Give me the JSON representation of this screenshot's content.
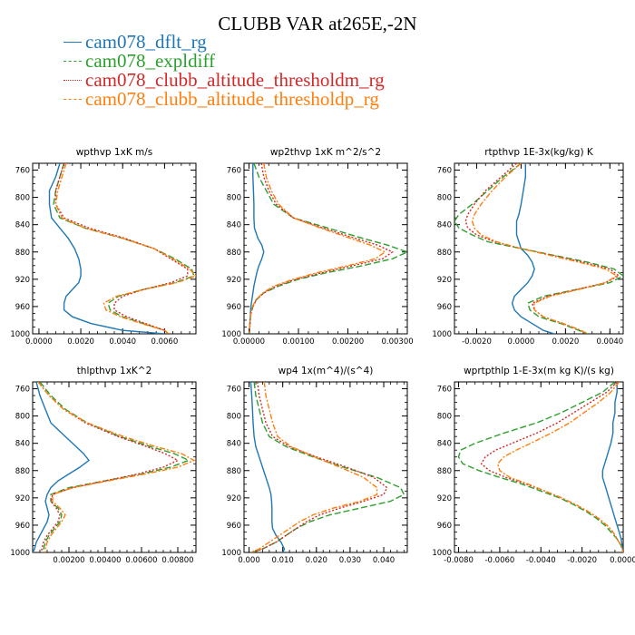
{
  "title": "CLUBB VAR at265E,-2N",
  "legend": [
    {
      "name": "cam078_dflt_rg",
      "color": "#1f77b4",
      "dash": "solid"
    },
    {
      "name": "cam078_expldiff",
      "color": "#2ca02c",
      "dash": "longdash"
    },
    {
      "name": "cam078_clubb_altitude_thresholdm_rg",
      "color": "#d62728",
      "dash": "dot"
    },
    {
      "name": "cam078_clubb_altitude_thresholdp_rg",
      "color": "#ff7f0e",
      "dash": "dashdot"
    }
  ],
  "chart_data": [
    {
      "type": "line",
      "title": "wpthvp  1xK m/s",
      "ylim": [
        1000,
        750
      ],
      "yticks": [
        "760",
        "800",
        "840",
        "880",
        "920",
        "960",
        "1000"
      ],
      "xlim": [
        -0.0003,
        0.0075
      ],
      "xticks": [
        0.0,
        0.002,
        0.004,
        0.006
      ],
      "xticklabels": [
        "0.0000",
        "0.0020",
        "0.0040",
        "0.0060"
      ],
      "y": [
        750,
        770,
        790,
        810,
        830,
        845,
        860,
        875,
        890,
        905,
        915,
        925,
        935,
        945,
        955,
        965,
        975,
        985,
        995,
        1000
      ],
      "series": [
        {
          "values": [
            0.001,
            0.0008,
            0.0005,
            0.0005,
            0.0006,
            0.001,
            0.0014,
            0.0017,
            0.0019,
            0.002,
            0.002,
            0.0019,
            0.0016,
            0.0013,
            0.0012,
            0.0012,
            0.0016,
            0.0025,
            0.004,
            0.006
          ]
        },
        {
          "values": [
            0.0012,
            0.001,
            0.0008,
            0.0007,
            0.001,
            0.0022,
            0.004,
            0.0055,
            0.0065,
            0.0073,
            0.0074,
            0.0065,
            0.005,
            0.0038,
            0.0033,
            0.0034,
            0.004,
            0.005,
            0.006,
            0.0062
          ]
        },
        {
          "values": [
            0.0012,
            0.001,
            0.0008,
            0.0008,
            0.0012,
            0.0024,
            0.0041,
            0.0055,
            0.0063,
            0.0071,
            0.0071,
            0.0063,
            0.005,
            0.004,
            0.0036,
            0.0036,
            0.0042,
            0.0051,
            0.006,
            0.0062
          ]
        },
        {
          "values": [
            0.0013,
            0.0011,
            0.0009,
            0.0008,
            0.0011,
            0.0022,
            0.004,
            0.0055,
            0.0064,
            0.0072,
            0.0075,
            0.0066,
            0.005,
            0.0037,
            0.0031,
            0.0032,
            0.0039,
            0.0049,
            0.006,
            0.0062
          ]
        }
      ]
    },
    {
      "type": "line",
      "title": "wp2thvp  1xK m^2/s^2",
      "ylim": [
        1000,
        750
      ],
      "yticks": [
        "760",
        "800",
        "840",
        "880",
        "920",
        "960",
        "1000"
      ],
      "xlim": [
        -0.0001,
        0.0032
      ],
      "xticks": [
        0.0,
        0.001,
        0.002,
        0.003
      ],
      "xticklabels": [
        "0.00000",
        "0.00100",
        "0.00200",
        "0.00300"
      ],
      "y": [
        750,
        770,
        790,
        810,
        830,
        845,
        860,
        870,
        880,
        890,
        900,
        910,
        920,
        930,
        940,
        950,
        960,
        970,
        985,
        1000
      ],
      "series": [
        {
          "values": [
            8e-05,
            8e-05,
            9e-05,
            0.0001,
            0.0001,
            0.00011,
            0.00018,
            0.00026,
            0.0003,
            0.00026,
            0.0002,
            0.00016,
            0.00013,
            0.0001,
            8e-05,
            6e-05,
            4e-05,
            3e-05,
            2e-05,
            1e-05
          ]
        },
        {
          "values": [
            0.0001,
            0.0002,
            0.00035,
            0.0005,
            0.0009,
            0.0016,
            0.0023,
            0.0028,
            0.0032,
            0.0029,
            0.0023,
            0.0016,
            0.001,
            0.0006,
            0.0003,
            0.00015,
            8e-05,
            4e-05,
            2e-05,
            1e-05
          ]
        },
        {
          "values": [
            0.00025,
            0.0003,
            0.0004,
            0.00055,
            0.0009,
            0.0015,
            0.00215,
            0.0026,
            0.0029,
            0.0027,
            0.0021,
            0.0015,
            0.00095,
            0.00055,
            0.0003,
            0.00015,
            8e-05,
            4e-05,
            2e-05,
            1e-05
          ]
        },
        {
          "values": [
            0.0003,
            0.00035,
            0.00045,
            0.0006,
            0.0009,
            0.00145,
            0.00205,
            0.00245,
            0.00275,
            0.00255,
            0.002,
            0.0014,
            0.0009,
            0.0005,
            0.00028,
            0.00014,
            7e-05,
            4e-05,
            2e-05,
            1e-05
          ]
        }
      ]
    },
    {
      "type": "line",
      "title": "rtpthvp  1E-3x(kg/kg) K",
      "ylim": [
        1000,
        750
      ],
      "yticks": [
        "760",
        "800",
        "840",
        "880",
        "920",
        "960",
        "1000"
      ],
      "xlim": [
        -0.003,
        0.0046
      ],
      "xticks": [
        -0.002,
        0.0,
        0.002,
        0.004
      ],
      "xticklabels": [
        "-0.0020",
        "0.0000",
        "0.0020",
        "0.0040"
      ],
      "y": [
        750,
        770,
        790,
        810,
        825,
        835,
        845,
        855,
        865,
        875,
        885,
        895,
        905,
        915,
        925,
        935,
        945,
        955,
        965,
        975,
        985,
        995,
        1000
      ],
      "series": [
        {
          "values": [
            0.0002,
            0.0002,
            0.0001,
            0.0,
            -0.0001,
            -0.0002,
            -0.0002,
            -0.0002,
            -0.0001,
            0.0,
            0.0003,
            0.0005,
            0.0006,
            0.0005,
            0.0003,
            0.0,
            -0.0003,
            -0.0004,
            -0.0003,
            0.0,
            0.0005,
            0.001,
            0.0015
          ]
        },
        {
          "values": [
            0.0,
            -0.0008,
            -0.0015,
            -0.0022,
            -0.0028,
            -0.003,
            -0.0028,
            -0.0022,
            -0.0015,
            0.0,
            0.0015,
            0.003,
            0.0042,
            0.0046,
            0.004,
            0.0025,
            0.001,
            0.0003,
            0.0004,
            0.0008,
            0.0018,
            0.0026,
            0.003
          ]
        },
        {
          "values": [
            -0.0002,
            -0.0009,
            -0.0016,
            -0.0021,
            -0.0024,
            -0.0025,
            -0.0024,
            -0.002,
            -0.0012,
            0.0,
            0.0014,
            0.0028,
            0.004,
            0.0044,
            0.0038,
            0.0025,
            0.0012,
            0.0005,
            0.0006,
            0.001,
            0.0019,
            0.0027,
            0.003
          ]
        },
        {
          "values": [
            0.0,
            -0.0007,
            -0.0013,
            -0.0018,
            -0.0021,
            -0.0022,
            -0.0021,
            -0.0018,
            -0.0011,
            0.0,
            0.0013,
            0.0026,
            0.0038,
            0.0043,
            0.0038,
            0.0026,
            0.0013,
            0.0006,
            0.0006,
            0.001,
            0.0019,
            0.0027,
            0.003
          ]
        }
      ]
    },
    {
      "type": "line",
      "title": "thlpthvp  1xK^2",
      "ylim": [
        1000,
        750
      ],
      "yticks": [
        "760",
        "800",
        "840",
        "880",
        "920",
        "960",
        "1000"
      ],
      "xlim": [
        0.0,
        0.009
      ],
      "xticks": [
        0.002,
        0.004,
        0.006,
        0.008
      ],
      "xticklabels": [
        "0.00200",
        "0.00400",
        "0.00600",
        "0.00800"
      ],
      "y": [
        750,
        770,
        790,
        810,
        830,
        845,
        855,
        865,
        875,
        885,
        895,
        905,
        915,
        925,
        935,
        945,
        955,
        965,
        975,
        985,
        995,
        1000
      ],
      "series": [
        {
          "values": [
            0.0002,
            0.0004,
            0.0007,
            0.001,
            0.0018,
            0.0024,
            0.0028,
            0.0031,
            0.0026,
            0.002,
            0.0014,
            0.001,
            0.0008,
            0.0007,
            0.0008,
            0.0009,
            0.0008,
            0.0006,
            0.0004,
            0.0002,
            0.0001,
            0.0
          ]
        },
        {
          "values": [
            0.0004,
            0.001,
            0.0018,
            0.003,
            0.0048,
            0.0065,
            0.0078,
            0.0086,
            0.0076,
            0.006,
            0.004,
            0.002,
            0.001,
            0.001,
            0.0014,
            0.0016,
            0.0015,
            0.0012,
            0.0009,
            0.0007,
            0.0006,
            0.0006
          ]
        },
        {
          "values": [
            0.0003,
            0.0009,
            0.0017,
            0.0029,
            0.0047,
            0.0063,
            0.0073,
            0.008,
            0.0072,
            0.0058,
            0.004,
            0.0022,
            0.0011,
            0.001,
            0.0013,
            0.0015,
            0.0014,
            0.0011,
            0.0008,
            0.0006,
            0.0005,
            0.0005
          ]
        },
        {
          "values": [
            0.0003,
            0.0009,
            0.0017,
            0.003,
            0.005,
            0.0068,
            0.0082,
            0.0089,
            0.008,
            0.0062,
            0.0042,
            0.0022,
            0.0011,
            0.0011,
            0.0015,
            0.0018,
            0.0016,
            0.0013,
            0.001,
            0.0008,
            0.0007,
            0.0007
          ]
        }
      ]
    },
    {
      "type": "line",
      "title": "wp4  1x(m^4)/(s^4)",
      "ylim": [
        1000,
        750
      ],
      "yticks": [
        "760",
        "800",
        "840",
        "880",
        "920",
        "960",
        "1000"
      ],
      "xlim": [
        -0.0015,
        0.047
      ],
      "xticks": [
        0.0,
        0.01,
        0.02,
        0.03,
        0.04
      ],
      "xticklabels": [
        "0.000",
        "0.010",
        "0.020",
        "0.030",
        "0.040"
      ],
      "y": [
        750,
        770,
        790,
        810,
        830,
        845,
        860,
        875,
        890,
        905,
        915,
        925,
        935,
        945,
        955,
        965,
        975,
        985,
        995,
        1000
      ],
      "series": [
        {
          "values": [
            0.0005,
            0.0008,
            0.001,
            0.0012,
            0.0015,
            0.002,
            0.003,
            0.004,
            0.005,
            0.006,
            0.0065,
            0.0067,
            0.0068,
            0.0068,
            0.0068,
            0.007,
            0.008,
            0.0095,
            0.0105,
            0.01
          ]
        },
        {
          "values": [
            0.0015,
            0.002,
            0.003,
            0.004,
            0.006,
            0.011,
            0.019,
            0.028,
            0.038,
            0.045,
            0.046,
            0.042,
            0.033,
            0.024,
            0.018,
            0.014,
            0.011,
            0.008,
            0.004,
            0.001
          ]
        },
        {
          "values": [
            0.0025,
            0.003,
            0.004,
            0.005,
            0.007,
            0.012,
            0.02,
            0.029,
            0.037,
            0.041,
            0.04,
            0.034,
            0.027,
            0.021,
            0.017,
            0.014,
            0.011,
            0.008,
            0.004,
            0.001
          ]
        },
        {
          "values": [
            0.0045,
            0.005,
            0.006,
            0.007,
            0.0085,
            0.0125,
            0.0195,
            0.027,
            0.034,
            0.038,
            0.038,
            0.033,
            0.025,
            0.019,
            0.015,
            0.012,
            0.009,
            0.006,
            0.003,
            0.0005
          ]
        }
      ]
    },
    {
      "type": "line",
      "title": "wprtpthlp  1-E-3x(m kg K)/(s kg)",
      "ylim": [
        1000,
        750
      ],
      "yticks": [
        "760",
        "800",
        "840",
        "880",
        "920",
        "960",
        "1000"
      ],
      "xlim": [
        -0.0082,
        0.0
      ],
      "xticks": [
        -0.008,
        -0.006,
        -0.004,
        -0.002,
        0.0
      ],
      "xticklabels": [
        "-0.0080",
        "-0.0060",
        "-0.0040",
        "-0.0020",
        "0.0000"
      ],
      "y": [
        750,
        765,
        780,
        795,
        810,
        825,
        840,
        850,
        860,
        870,
        880,
        890,
        900,
        910,
        920,
        930,
        940,
        950,
        960,
        970,
        980,
        990,
        1000
      ],
      "series": [
        {
          "values": [
            -0.0003,
            -0.0003,
            -0.0004,
            -0.0004,
            -0.0005,
            -0.0005,
            -0.0006,
            -0.0007,
            -0.0008,
            -0.0009,
            -0.001,
            -0.001,
            -0.0009,
            -0.0008,
            -0.0007,
            -0.0006,
            -0.0005,
            -0.0004,
            -0.0003,
            -0.0002,
            -0.0001,
            -5e-05,
            0.0
          ]
        },
        {
          "values": [
            -0.0004,
            -0.001,
            -0.002,
            -0.003,
            -0.0042,
            -0.0058,
            -0.0072,
            -0.0079,
            -0.008,
            -0.0078,
            -0.007,
            -0.006,
            -0.0049,
            -0.004,
            -0.0031,
            -0.0024,
            -0.0018,
            -0.0013,
            -0.0009,
            -0.0006,
            -0.0003,
            -0.0001,
            0.0
          ]
        },
        {
          "values": [
            -0.0003,
            -0.0008,
            -0.0016,
            -0.0024,
            -0.0032,
            -0.0042,
            -0.0054,
            -0.0062,
            -0.0067,
            -0.0069,
            -0.0065,
            -0.0057,
            -0.0047,
            -0.0038,
            -0.003,
            -0.0023,
            -0.0017,
            -0.0012,
            -0.0008,
            -0.0005,
            -0.0003,
            -0.0001,
            0.0
          ]
        },
        {
          "values": [
            -0.0002,
            -0.0006,
            -0.0012,
            -0.0019,
            -0.0026,
            -0.0035,
            -0.0045,
            -0.0052,
            -0.0058,
            -0.0061,
            -0.006,
            -0.0055,
            -0.0046,
            -0.0038,
            -0.003,
            -0.0023,
            -0.0017,
            -0.0012,
            -0.0008,
            -0.0005,
            -0.0003,
            -0.0001,
            0.0
          ]
        }
      ]
    }
  ]
}
